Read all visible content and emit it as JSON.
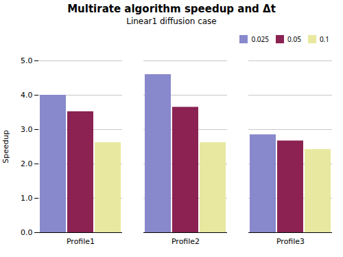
{
  "chart_data": {
    "type": "bar",
    "title": "Multirate algorithm speedup and Δt",
    "subtitle": "Linear1 diffusion case",
    "categories": [
      "Profile1",
      "Profile2",
      "Profile3"
    ],
    "series": [
      {
        "name": "0.025",
        "color": "#8888CC",
        "values": [
          4.0,
          4.6,
          2.85
        ]
      },
      {
        "name": "0.05",
        "color": "#8B2252",
        "values": [
          3.52,
          3.65,
          2.67
        ]
      },
      {
        "name": "0.1",
        "color": "#E8E8A0",
        "values": [
          2.62,
          2.62,
          2.42
        ]
      }
    ],
    "ylabel": "Speedup",
    "ylim": [
      0.0,
      5.0
    ],
    "yticks": [
      {
        "value": 0.0,
        "label": "0.0"
      },
      {
        "value": 1.0,
        "label": "1.0"
      },
      {
        "value": 2.0,
        "label": "2.0"
      },
      {
        "value": 3.0,
        "label": "3.0"
      },
      {
        "value": 4.0,
        "label": "4.0"
      },
      {
        "value": 5.0,
        "label": "5.0"
      }
    ],
    "grid": true,
    "legend": "upper right"
  }
}
